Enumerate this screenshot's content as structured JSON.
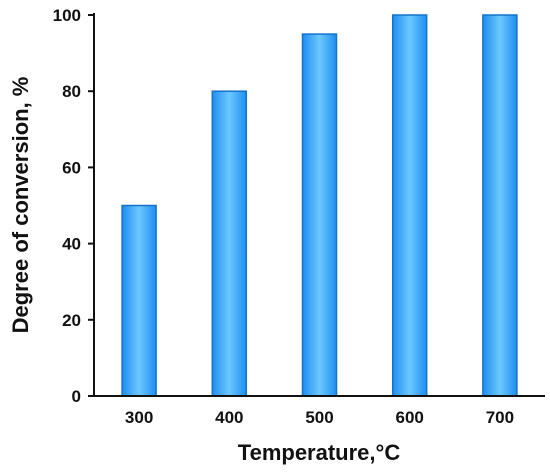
{
  "chart_data": {
    "type": "bar",
    "categories": [
      "300",
      "400",
      "500",
      "600",
      "700"
    ],
    "values": [
      50,
      80,
      95,
      100,
      100
    ],
    "title": "",
    "xlabel": "Temperature,°C",
    "ylabel": "Degree of conversion, %",
    "ylim": [
      0,
      100
    ],
    "yticks": [
      0,
      20,
      40,
      60,
      80,
      100
    ],
    "grid": false,
    "legend": "none",
    "colors": {
      "bar_fill_center": "#6cc8ff",
      "bar_fill_edge": "#1f8ef0",
      "bar_stroke": "#1474cc",
      "axis": "#111111",
      "text": "#111111"
    }
  }
}
